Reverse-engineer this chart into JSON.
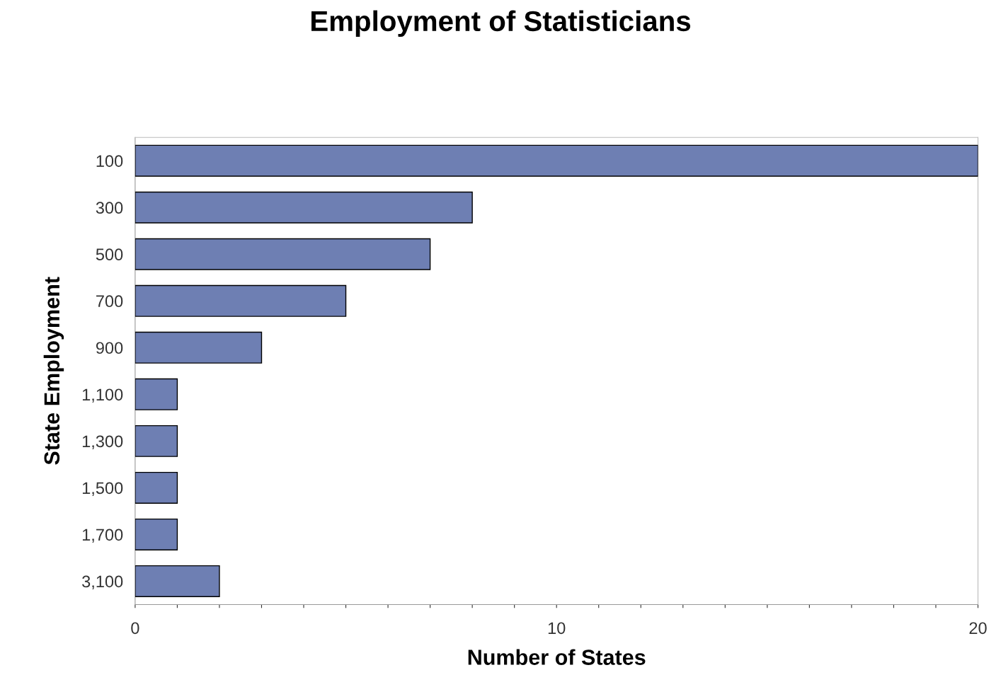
{
  "chart_data": {
    "type": "bar",
    "orientation": "horizontal",
    "title": "Employment of Statisticians",
    "xlabel": "Number of States",
    "ylabel": "State Employment",
    "categories": [
      "100",
      "300",
      "500",
      "700",
      "900",
      "1,100",
      "1,300",
      "1,500",
      "1,700",
      "3,100"
    ],
    "values": [
      20,
      8,
      7,
      5,
      3,
      1,
      1,
      1,
      1,
      2
    ],
    "color": "#6e7fb3",
    "xlim": [
      0,
      20
    ],
    "xticks": [
      0,
      {
        "value": 1,
        "label": null
      },
      {
        "value": 2,
        "label": null
      },
      {
        "value": 3,
        "label": null
      },
      {
        "value": 4,
        "label": null
      },
      {
        "value": 5,
        "label": null
      },
      {
        "value": 6,
        "label": null
      },
      {
        "value": 7,
        "label": null
      },
      {
        "value": 8,
        "label": null
      },
      {
        "value": 9,
        "label": null
      },
      10,
      {
        "value": 11,
        "label": null
      },
      {
        "value": 12,
        "label": null
      },
      {
        "value": 13,
        "label": null
      },
      {
        "value": 14,
        "label": null
      },
      {
        "value": 15,
        "label": null
      },
      {
        "value": 16,
        "label": null
      },
      {
        "value": 17,
        "label": null
      },
      {
        "value": 18,
        "label": null
      },
      {
        "value": 19,
        "label": null
      },
      20
    ],
    "grid": false,
    "legend": false
  }
}
